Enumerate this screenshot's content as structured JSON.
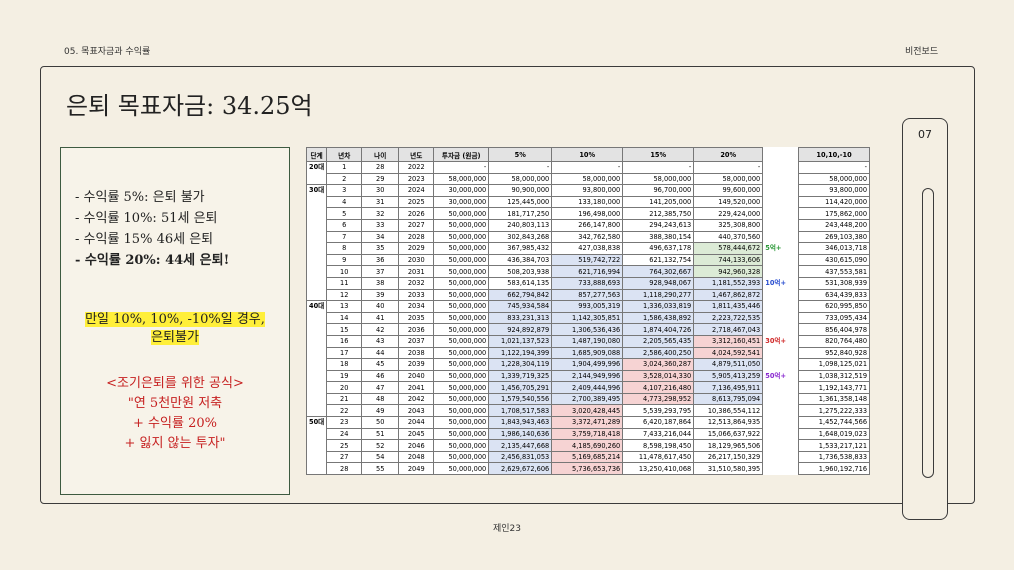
{
  "header": {
    "section": "05. 목표자금과 수익률",
    "brand": "비전보드",
    "page_number": "07"
  },
  "title": "은퇴 목표자금: 34.25억",
  "summary": {
    "lines": [
      "- 수익률 5%: 은퇴 불가",
      "- 수익률 10%: 51세 은퇴",
      "- 수익률 15% 46세 은퇴",
      "- 수익률 20%: 44세 은퇴!"
    ],
    "warning": [
      "만일 10%, 10%, -10%일 경우,",
      "은퇴불가"
    ],
    "formula": [
      "<조기은퇴를 위한 공식>",
      "\"연 5천만원 저축",
      "+ 수익률 20%",
      "+ 잃지 않는 투자\""
    ]
  },
  "table": {
    "columns": [
      "단계",
      "년차",
      "나이",
      "년도",
      "투자금 (원금)",
      "5%",
      "10%",
      "15%",
      "20%",
      "10,10,-10"
    ],
    "stages": [
      {
        "label": "20대",
        "span": 2
      },
      {
        "label": "30대",
        "span": 10
      },
      {
        "label": "40대",
        "span": 10
      },
      {
        "label": "50대",
        "span": 5
      }
    ],
    "rows": [
      {
        "cells": [
          "1",
          "28",
          "2022",
          "-",
          "-",
          "-",
          "-",
          "-",
          "-"
        ]
      },
      {
        "cells": [
          "2",
          "29",
          "2023",
          "58,000,000",
          "58,000,000",
          "58,000,000",
          "58,000,000",
          "58,000,000",
          "58,000,000"
        ]
      },
      {
        "cells": [
          "3",
          "30",
          "2024",
          "30,000,000",
          "90,900,000",
          "93,800,000",
          "96,700,000",
          "99,600,000",
          "93,800,000"
        ]
      },
      {
        "cells": [
          "4",
          "31",
          "2025",
          "30,000,000",
          "125,445,000",
          "133,180,000",
          "141,205,000",
          "149,520,000",
          "114,420,000"
        ]
      },
      {
        "cells": [
          "5",
          "32",
          "2026",
          "50,000,000",
          "181,717,250",
          "196,498,000",
          "212,385,750",
          "229,424,000",
          "175,862,000"
        ]
      },
      {
        "cells": [
          "6",
          "33",
          "2027",
          "50,000,000",
          "240,803,113",
          "266,147,800",
          "294,243,613",
          "325,308,800",
          "243,448,200"
        ]
      },
      {
        "cells": [
          "7",
          "34",
          "2028",
          "50,000,000",
          "302,843,268",
          "342,762,580",
          "388,380,154",
          "440,370,560",
          "269,103,380"
        ]
      },
      {
        "cells": [
          "8",
          "35",
          "2029",
          "50,000,000",
          "367,985,432",
          "427,038,838",
          "496,637,178",
          "578,444,672",
          "346,013,718"
        ],
        "note": "5억+"
      },
      {
        "cells": [
          "9",
          "36",
          "2030",
          "50,000,000",
          "436,384,703",
          "519,742,722",
          "621,132,754",
          "744,133,606",
          "430,615,090"
        ]
      },
      {
        "cells": [
          "10",
          "37",
          "2031",
          "50,000,000",
          "508,203,938",
          "621,716,994",
          "764,302,667",
          "942,960,328",
          "437,553,581"
        ]
      },
      {
        "cells": [
          "11",
          "38",
          "2032",
          "50,000,000",
          "583,614,135",
          "733,888,693",
          "928,948,067",
          "1,181,552,393",
          "531,308,939"
        ],
        "note": "10억+"
      },
      {
        "cells": [
          "12",
          "39",
          "2033",
          "50,000,000",
          "662,794,842",
          "857,277,563",
          "1,118,290,277",
          "1,467,862,872",
          "634,439,833"
        ]
      },
      {
        "cells": [
          "13",
          "40",
          "2034",
          "50,000,000",
          "745,934,584",
          "993,005,319",
          "1,336,033,819",
          "1,811,435,446",
          "620,995,850"
        ]
      },
      {
        "cells": [
          "14",
          "41",
          "2035",
          "50,000,000",
          "833,231,313",
          "1,142,305,851",
          "1,586,438,892",
          "2,223,722,535",
          "733,095,434"
        ]
      },
      {
        "cells": [
          "15",
          "42",
          "2036",
          "50,000,000",
          "924,892,879",
          "1,306,536,436",
          "1,874,404,726",
          "2,718,467,043",
          "856,404,978"
        ]
      },
      {
        "cells": [
          "16",
          "43",
          "2037",
          "50,000,000",
          "1,021,137,523",
          "1,487,190,080",
          "2,205,565,435",
          "3,312,160,451",
          "820,764,480"
        ],
        "note": "30억+"
      },
      {
        "cells": [
          "17",
          "44",
          "2038",
          "50,000,000",
          "1,122,194,399",
          "1,685,909,088",
          "2,586,400,250",
          "4,024,592,541",
          "952,840,928"
        ]
      },
      {
        "cells": [
          "18",
          "45",
          "2039",
          "50,000,000",
          "1,228,304,119",
          "1,904,499,996",
          "3,024,360,287",
          "4,879,511,050",
          "1,098,125,021"
        ]
      },
      {
        "cells": [
          "19",
          "46",
          "2040",
          "50,000,000",
          "1,339,719,325",
          "2,144,949,996",
          "3,528,014,330",
          "5,905,413,259",
          "1,038,312,519"
        ],
        "note": "50억+"
      },
      {
        "cells": [
          "20",
          "47",
          "2041",
          "50,000,000",
          "1,456,705,291",
          "2,409,444,996",
          "4,107,216,480",
          "7,136,495,911",
          "1,192,143,771"
        ]
      },
      {
        "cells": [
          "21",
          "48",
          "2042",
          "50,000,000",
          "1,579,540,556",
          "2,700,389,495",
          "4,773,298,952",
          "8,613,795,094",
          "1,361,358,148"
        ]
      },
      {
        "cells": [
          "22",
          "49",
          "2043",
          "50,000,000",
          "1,708,517,583",
          "3,020,428,445",
          "5,539,293,795",
          "10,386,554,112",
          "1,275,222,333"
        ]
      },
      {
        "cells": [
          "23",
          "50",
          "2044",
          "50,000,000",
          "1,843,943,463",
          "3,372,471,289",
          "6,420,187,864",
          "12,513,864,935",
          "1,452,744,566"
        ]
      },
      {
        "cells": [
          "24",
          "51",
          "2045",
          "50,000,000",
          "1,986,140,636",
          "3,759,718,418",
          "7,433,216,044",
          "15,066,637,922",
          "1,648,019,023"
        ]
      },
      {
        "cells": [
          "25",
          "52",
          "2046",
          "50,000,000",
          "2,135,447,668",
          "4,185,690,260",
          "8,598,198,450",
          "18,129,965,506",
          "1,533,217,121"
        ]
      },
      {
        "cells": [
          "27",
          "54",
          "2048",
          "50,000,000",
          "2,456,831,053",
          "5,169,685,214",
          "11,478,617,450",
          "26,217,150,329",
          "1,736,538,833"
        ]
      },
      {
        "cells": [
          "28",
          "55",
          "2049",
          "50,000,000",
          "2,629,672,606",
          "5,736,653,736",
          "13,250,410,068",
          "31,510,580,395",
          "1,960,192,716"
        ]
      }
    ]
  },
  "footer": "제인23"
}
